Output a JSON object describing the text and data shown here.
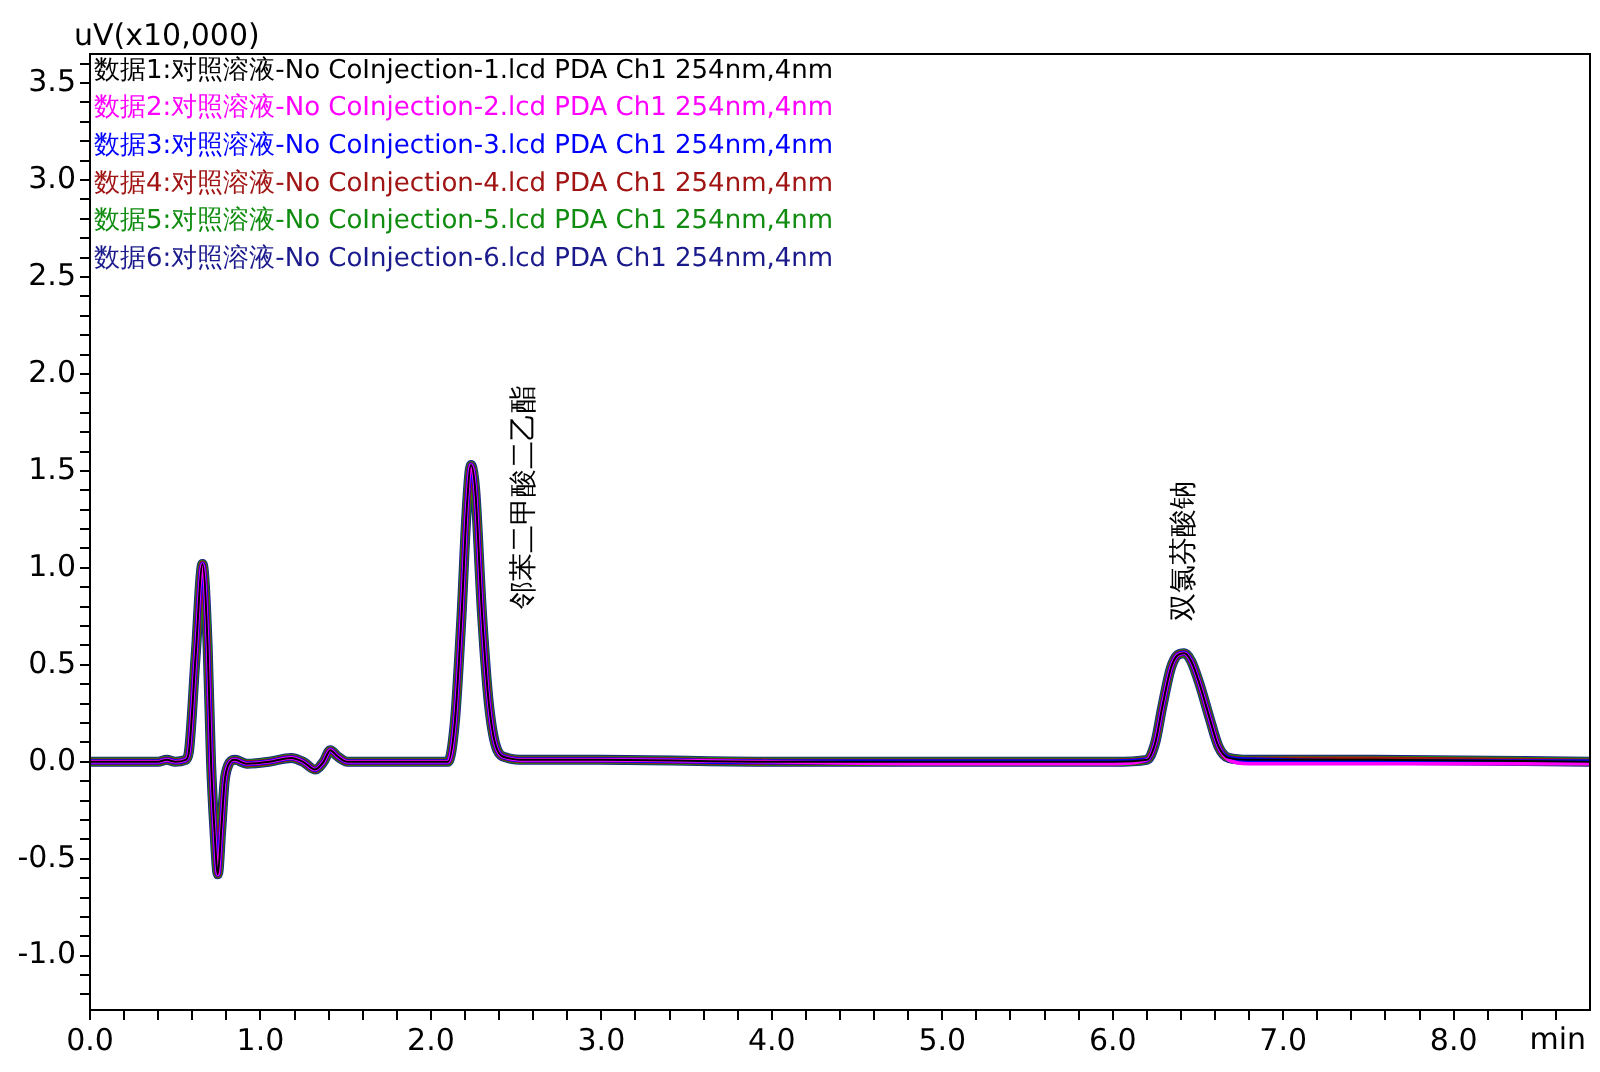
{
  "chart_data": {
    "type": "line",
    "ylabel": "uV(x10,000)",
    "xlabel": "min",
    "legend": "top left",
    "grid": false,
    "marker": "none",
    "line_style": "solid",
    "xlim": [
      0,
      8.8
    ],
    "xticks": [
      {
        "value": 0,
        "label": "0.0"
      },
      {
        "value": 0.2,
        "label": null
      },
      {
        "value": 0.4,
        "label": null
      },
      {
        "value": 0.6,
        "label": null
      },
      {
        "value": 0.8,
        "label": null
      },
      {
        "value": 1,
        "label": "1.0"
      },
      {
        "value": 1.2,
        "label": null
      },
      {
        "value": 1.4,
        "label": null
      },
      {
        "value": 1.6,
        "label": null
      },
      {
        "value": 1.8,
        "label": null
      },
      {
        "value": 2,
        "label": "2.0"
      },
      {
        "value": 2.2,
        "label": null
      },
      {
        "value": 2.4,
        "label": null
      },
      {
        "value": 2.6,
        "label": null
      },
      {
        "value": 2.8,
        "label": null
      },
      {
        "value": 3,
        "label": "3.0"
      },
      {
        "value": 3.2,
        "label": null
      },
      {
        "value": 3.4,
        "label": null
      },
      {
        "value": 3.6,
        "label": null
      },
      {
        "value": 3.8,
        "label": null
      },
      {
        "value": 4,
        "label": "4.0"
      },
      {
        "value": 4.2,
        "label": null
      },
      {
        "value": 4.4,
        "label": null
      },
      {
        "value": 4.6,
        "label": null
      },
      {
        "value": 4.8,
        "label": null
      },
      {
        "value": 5,
        "label": "5.0"
      },
      {
        "value": 5.2,
        "label": null
      },
      {
        "value": 5.4,
        "label": null
      },
      {
        "value": 5.6,
        "label": null
      },
      {
        "value": 5.8,
        "label": null
      },
      {
        "value": 6,
        "label": "6.0"
      },
      {
        "value": 6.2,
        "label": null
      },
      {
        "value": 6.4,
        "label": null
      },
      {
        "value": 6.6,
        "label": null
      },
      {
        "value": 6.8,
        "label": null
      },
      {
        "value": 7,
        "label": "7.0"
      },
      {
        "value": 7.2,
        "label": null
      },
      {
        "value": 7.4,
        "label": null
      },
      {
        "value": 7.6,
        "label": null
      },
      {
        "value": 7.8,
        "label": null
      },
      {
        "value": 8,
        "label": "8.0"
      },
      {
        "value": 8.2,
        "label": null
      },
      {
        "value": 8.4,
        "label": null
      },
      {
        "value": 8.6,
        "label": null
      }
    ],
    "ylim": [
      -1.28,
      3.65
    ],
    "yticks": [
      {
        "value": -1.2,
        "label": null
      },
      {
        "value": -1.1,
        "label": null
      },
      {
        "value": -1,
        "label": "-1.0"
      },
      {
        "value": -0.9,
        "label": null
      },
      {
        "value": -0.8,
        "label": null
      },
      {
        "value": -0.7,
        "label": null
      },
      {
        "value": -0.6,
        "label": null
      },
      -0.5,
      {
        "value": -0.4,
        "label": null
      },
      {
        "value": -0.3,
        "label": null
      },
      {
        "value": -0.2,
        "label": null
      },
      {
        "value": -0.1,
        "label": null
      },
      {
        "value": 0,
        "label": "0.0"
      },
      {
        "value": 0.1,
        "label": null
      },
      {
        "value": 0.2,
        "label": null
      },
      {
        "value": 0.3,
        "label": null
      },
      {
        "value": 0.4,
        "label": null
      },
      0.5,
      {
        "value": 0.6,
        "label": null
      },
      {
        "value": 0.7,
        "label": null
      },
      {
        "value": 0.8,
        "label": null
      },
      {
        "value": 0.9,
        "label": null
      },
      {
        "value": 1,
        "label": "1.0"
      },
      {
        "value": 1.1,
        "label": null
      },
      {
        "value": 1.2,
        "label": null
      },
      {
        "value": 1.3,
        "label": null
      },
      {
        "value": 1.4,
        "label": null
      },
      1.5,
      {
        "value": 1.6,
        "label": null
      },
      {
        "value": 1.7,
        "label": null
      },
      {
        "value": 1.8,
        "label": null
      },
      {
        "value": 1.9,
        "label": null
      },
      {
        "value": 2,
        "label": "2.0"
      },
      {
        "value": 2.1,
        "label": null
      },
      {
        "value": 2.2,
        "label": null
      },
      {
        "value": 2.3,
        "label": null
      },
      {
        "value": 2.4,
        "label": null
      },
      2.5,
      {
        "value": 2.6,
        "label": null
      },
      {
        "value": 2.7,
        "label": null
      },
      {
        "value": 2.8,
        "label": null
      },
      {
        "value": 2.9,
        "label": null
      },
      {
        "value": 3,
        "label": "3.0"
      },
      {
        "value": 3.1,
        "label": null
      },
      {
        "value": 3.2,
        "label": null
      },
      {
        "value": 3.3,
        "label": null
      },
      {
        "value": 3.4,
        "label": null
      },
      3.5,
      {
        "value": 3.6,
        "label": null
      }
    ],
    "x": [
      0,
      0.4,
      0.45,
      0.5,
      0.56,
      0.58,
      0.62,
      0.66,
      0.69,
      0.71,
      0.73,
      0.75,
      0.77,
      0.79,
      0.81,
      0.85,
      0.92,
      1.05,
      1.18,
      1.25,
      1.32,
      1.37,
      1.41,
      1.45,
      1.51,
      1.8,
      2.1,
      2.14,
      2.18,
      2.21,
      2.235,
      2.26,
      2.3,
      2.34,
      2.39,
      2.45,
      2.55,
      3,
      4,
      5,
      6,
      6.2,
      6.25,
      6.29,
      6.34,
      6.38,
      6.42,
      6.46,
      6.51,
      6.57,
      6.62,
      6.68,
      6.8,
      7.5,
      8.8
    ],
    "series": [
      {
        "name": "数据1:对照溶液-No CoInjection-1.lcd PDA Ch1 254nm,4nm",
        "color": "#000000",
        "values": [
          0,
          0,
          0.01,
          0,
          0.01,
          0.05,
          0.55,
          1.02,
          0.6,
          0,
          -0.35,
          -0.58,
          -0.35,
          -0.1,
          -0.02,
          0.01,
          -0.01,
          0,
          0.02,
          0,
          -0.04,
          0,
          0.06,
          0.03,
          0,
          0,
          0,
          0.2,
          0.76,
          1.3,
          1.53,
          1.4,
          0.76,
          0.3,
          0.06,
          0.02,
          0.01,
          0.01,
          0,
          0,
          0,
          0.01,
          0.1,
          0.28,
          0.48,
          0.55,
          0.56,
          0.52,
          0.4,
          0.22,
          0.08,
          0.02,
          0.01,
          0.01,
          0
        ]
      },
      {
        "name": "数据2:对照溶液-No CoInjection-2.lcd PDA Ch1 254nm,4nm",
        "color": "#ff00ff",
        "values": [
          0,
          0,
          0.01,
          0,
          0.01,
          0.05,
          0.55,
          1.02,
          0.6,
          0,
          -0.35,
          -0.58,
          -0.35,
          -0.1,
          -0.02,
          0.01,
          -0.01,
          0,
          0.02,
          0,
          -0.04,
          0,
          0.06,
          0.03,
          0,
          0,
          0,
          0.2,
          0.76,
          1.3,
          1.53,
          1.4,
          0.76,
          0.3,
          0.06,
          0.02,
          0.01,
          0.01,
          0,
          -0.01,
          -0.01,
          0.01,
          0.1,
          0.28,
          0.48,
          0.55,
          0.56,
          0.52,
          0.4,
          0.22,
          0.08,
          0.01,
          -0.01,
          -0.01,
          -0.01
        ]
      },
      {
        "name": "数据3:对照溶液-No CoInjection-3.lcd PDA Ch1 254nm,4nm",
        "color": "#0000ff",
        "values": [
          0,
          0,
          0.01,
          0,
          0.01,
          0.05,
          0.55,
          1.02,
          0.6,
          0,
          -0.35,
          -0.58,
          -0.35,
          -0.1,
          -0.02,
          0.01,
          -0.01,
          0,
          0.02,
          0,
          -0.04,
          0,
          0.06,
          0.03,
          0,
          0,
          0,
          0.2,
          0.76,
          1.3,
          1.53,
          1.4,
          0.76,
          0.3,
          0.06,
          0.02,
          0.01,
          0.01,
          0,
          0,
          0,
          0.01,
          0.1,
          0.28,
          0.48,
          0.55,
          0.56,
          0.52,
          0.4,
          0.22,
          0.08,
          0.02,
          0.01,
          0,
          0
        ]
      },
      {
        "name": "数据4:对照溶液-No CoInjection-4.lcd PDA Ch1 254nm,4nm",
        "color": "#a01414",
        "values": [
          0,
          0,
          0.01,
          0,
          0.01,
          0.05,
          0.55,
          1.02,
          0.6,
          0,
          -0.35,
          -0.58,
          -0.35,
          -0.1,
          -0.02,
          0.01,
          -0.01,
          0,
          0.02,
          0,
          -0.04,
          0,
          0.06,
          0.03,
          0,
          0,
          0,
          0.2,
          0.76,
          1.3,
          1.53,
          1.4,
          0.76,
          0.3,
          0.06,
          0.02,
          0.01,
          0.01,
          0,
          0,
          0,
          0.01,
          0.1,
          0.28,
          0.48,
          0.55,
          0.56,
          0.52,
          0.4,
          0.22,
          0.08,
          0.02,
          0.01,
          0.01,
          0
        ]
      },
      {
        "name": "数据5:对照溶液-No CoInjection-5.lcd PDA Ch1 254nm,4nm",
        "color": "#108c10",
        "values": [
          0,
          0,
          0.01,
          0,
          0.01,
          0.05,
          0.55,
          1.02,
          0.6,
          0,
          -0.35,
          -0.58,
          -0.35,
          -0.1,
          -0.02,
          0.01,
          -0.01,
          0,
          0.02,
          0,
          -0.04,
          0,
          0.06,
          0.03,
          0,
          0,
          0,
          0.2,
          0.76,
          1.3,
          1.53,
          1.4,
          0.76,
          0.3,
          0.06,
          0.02,
          0.01,
          0.01,
          0,
          0,
          0,
          0.01,
          0.1,
          0.28,
          0.48,
          0.55,
          0.56,
          0.52,
          0.4,
          0.22,
          0.08,
          0.02,
          0.01,
          0.01,
          0
        ]
      },
      {
        "name": "数据6:对照溶液-No CoInjection-6.lcd PDA Ch1 254nm,4nm",
        "color": "#1a1a8c",
        "values": [
          0,
          0,
          0.01,
          0,
          0.01,
          0.05,
          0.55,
          1.02,
          0.6,
          0,
          -0.35,
          -0.58,
          -0.35,
          -0.1,
          -0.02,
          0.01,
          -0.01,
          0,
          0.02,
          0,
          -0.04,
          0,
          0.06,
          0.03,
          0,
          0,
          0,
          0.2,
          0.76,
          1.3,
          1.53,
          1.4,
          0.76,
          0.3,
          0.06,
          0.02,
          0.01,
          0.01,
          0,
          0,
          0,
          0.01,
          0.1,
          0.28,
          0.48,
          0.55,
          0.56,
          0.52,
          0.4,
          0.22,
          0.08,
          0.02,
          0.01,
          0.01,
          0
        ]
      }
    ],
    "annotations": [
      {
        "text": "邻苯二甲酸二乙酯",
        "x": 2.235,
        "y": 1.53
      },
      {
        "text": "双氯芬酸钠",
        "x": 6.42,
        "y": 0.56
      }
    ]
  }
}
